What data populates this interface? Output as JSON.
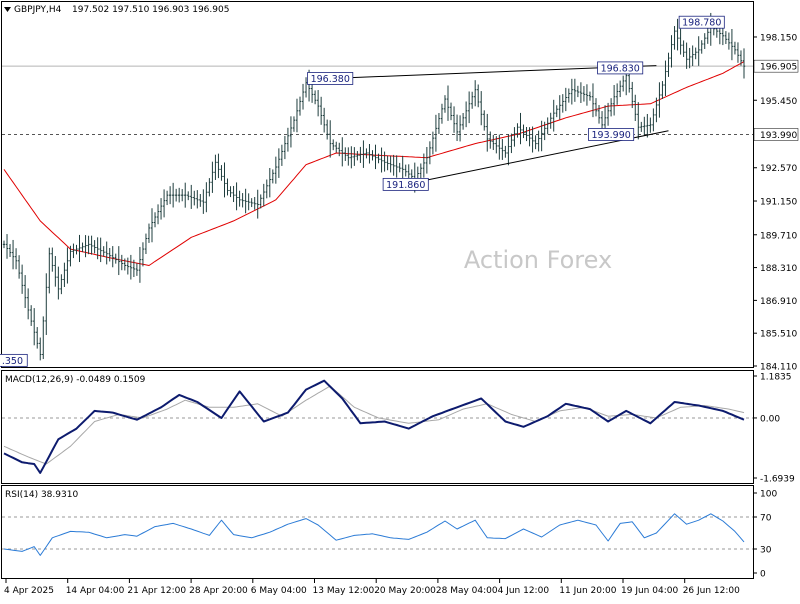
{
  "header": {
    "symbol": "GBPJPY,H4",
    "ohlc": "197.502 197.510 196.903 196.905"
  },
  "watermark": "Action Forex",
  "chart_data": [
    {
      "type": "candlestick",
      "title": "GBPJPY,H4",
      "ylim": [
        184.11,
        199.6
      ],
      "y_ticks": [
        "198.150",
        "196.905",
        "195.450",
        "193.990",
        "192.570",
        "191.150",
        "189.710",
        "188.310",
        "186.910",
        "185.510",
        "184.110"
      ],
      "price_anchors": [
        {
          "bar": 0,
          "v": 189.3
        },
        {
          "bar": 4,
          "v": 188.6
        },
        {
          "bar": 8,
          "v": 186.5
        },
        {
          "bar": 12,
          "v": 184.6
        },
        {
          "bar": 15,
          "v": 188.9
        },
        {
          "bar": 18,
          "v": 187.4
        },
        {
          "bar": 22,
          "v": 189.0
        },
        {
          "bar": 28,
          "v": 189.3
        },
        {
          "bar": 34,
          "v": 188.9
        },
        {
          "bar": 40,
          "v": 188.4
        },
        {
          "bar": 44,
          "v": 188.2
        },
        {
          "bar": 48,
          "v": 190.0
        },
        {
          "bar": 54,
          "v": 191.4
        },
        {
          "bar": 60,
          "v": 191.4
        },
        {
          "bar": 66,
          "v": 191.1
        },
        {
          "bar": 70,
          "v": 192.8
        },
        {
          "bar": 74,
          "v": 191.6
        },
        {
          "bar": 78,
          "v": 191.2
        },
        {
          "bar": 84,
          "v": 191.0
        },
        {
          "bar": 90,
          "v": 192.6
        },
        {
          "bar": 96,
          "v": 194.6
        },
        {
          "bar": 100,
          "v": 196.2
        },
        {
          "bar": 104,
          "v": 195.2
        },
        {
          "bar": 108,
          "v": 193.6
        },
        {
          "bar": 114,
          "v": 193.0
        },
        {
          "bar": 120,
          "v": 193.2
        },
        {
          "bar": 126,
          "v": 192.8
        },
        {
          "bar": 132,
          "v": 192.5
        },
        {
          "bar": 136,
          "v": 192.1
        },
        {
          "bar": 140,
          "v": 193.0
        },
        {
          "bar": 146,
          "v": 195.5
        },
        {
          "bar": 150,
          "v": 194.1
        },
        {
          "bar": 156,
          "v": 195.9
        },
        {
          "bar": 160,
          "v": 193.8
        },
        {
          "bar": 166,
          "v": 193.2
        },
        {
          "bar": 170,
          "v": 194.3
        },
        {
          "bar": 176,
          "v": 193.6
        },
        {
          "bar": 182,
          "v": 194.9
        },
        {
          "bar": 188,
          "v": 195.9
        },
        {
          "bar": 194,
          "v": 195.6
        },
        {
          "bar": 198,
          "v": 194.4
        },
        {
          "bar": 202,
          "v": 195.6
        },
        {
          "bar": 206,
          "v": 196.5
        },
        {
          "bar": 210,
          "v": 194.3
        },
        {
          "bar": 214,
          "v": 194.4
        },
        {
          "bar": 218,
          "v": 196.1
        },
        {
          "bar": 222,
          "v": 198.4
        },
        {
          "bar": 226,
          "v": 197.2
        },
        {
          "bar": 230,
          "v": 197.6
        },
        {
          "bar": 234,
          "v": 198.6
        },
        {
          "bar": 238,
          "v": 198.2
        },
        {
          "bar": 242,
          "v": 197.6
        },
        {
          "bar": 245,
          "v": 196.905
        }
      ],
      "moving_average": [
        {
          "bar": 0,
          "v": 192.5
        },
        {
          "bar": 12,
          "v": 190.3
        },
        {
          "bar": 22,
          "v": 189.1
        },
        {
          "bar": 36,
          "v": 188.7
        },
        {
          "bar": 48,
          "v": 188.4
        },
        {
          "bar": 62,
          "v": 189.6
        },
        {
          "bar": 76,
          "v": 190.3
        },
        {
          "bar": 90,
          "v": 191.2
        },
        {
          "bar": 100,
          "v": 192.7
        },
        {
          "bar": 110,
          "v": 193.2
        },
        {
          "bar": 124,
          "v": 193.1
        },
        {
          "bar": 140,
          "v": 193.0
        },
        {
          "bar": 156,
          "v": 193.6
        },
        {
          "bar": 170,
          "v": 194.0
        },
        {
          "bar": 186,
          "v": 194.7
        },
        {
          "bar": 200,
          "v": 195.2
        },
        {
          "bar": 214,
          "v": 195.3
        },
        {
          "bar": 226,
          "v": 196.0
        },
        {
          "bar": 238,
          "v": 196.6
        },
        {
          "bar": 245,
          "v": 197.1
        }
      ],
      "current_price": "196.905",
      "support_line": "193.990",
      "annotations": [
        {
          "label": "196.380",
          "bar": 108,
          "v": 196.38
        },
        {
          "label": "196.830",
          "bar": 204,
          "v": 196.83
        },
        {
          "label": "191.860",
          "bar": 133,
          "v": 191.86
        },
        {
          "label": "193.990",
          "bar": 201,
          "v": 193.99
        },
        {
          "label": "198.780",
          "bar": 231,
          "v": 198.78
        },
        {
          "label": ".350",
          "bar": 3,
          "v": 184.35
        }
      ],
      "trendlines": [
        {
          "from": {
            "bar": 108,
            "v": 196.38
          },
          "to": {
            "bar": 216,
            "v": 196.93
          }
        },
        {
          "from": {
            "bar": 133,
            "v": 191.86
          },
          "to": {
            "bar": 220,
            "v": 194.15
          }
        }
      ],
      "x_labels": [
        "4 Apr 2025",
        "14 Apr 04:00",
        "21 Apr 12:00",
        "28 Apr 20:00",
        "6 May 04:00",
        "13 May 12:00",
        "20 May 20:00",
        "28 May 04:00",
        "4 Jun 12:00",
        "11 Jun 20:00",
        "19 Jun 04:00",
        "26 Jun 12:00"
      ]
    },
    {
      "type": "line",
      "title": "MACD(12,26,9) -0.0489 0.1509",
      "ylim": [
        -1.6939,
        1.1835
      ],
      "y_ticks": [
        "1.1835",
        "0.00",
        "-1.6939"
      ],
      "macd": [
        {
          "bar": 0,
          "v": -1.0
        },
        {
          "bar": 6,
          "v": -1.25
        },
        {
          "bar": 10,
          "v": -1.3
        },
        {
          "bar": 12,
          "v": -1.55
        },
        {
          "bar": 18,
          "v": -0.6
        },
        {
          "bar": 24,
          "v": -0.3
        },
        {
          "bar": 30,
          "v": 0.2
        },
        {
          "bar": 36,
          "v": 0.15
        },
        {
          "bar": 44,
          "v": -0.05
        },
        {
          "bar": 52,
          "v": 0.3
        },
        {
          "bar": 58,
          "v": 0.65
        },
        {
          "bar": 64,
          "v": 0.45
        },
        {
          "bar": 72,
          "v": 0.0
        },
        {
          "bar": 78,
          "v": 0.75
        },
        {
          "bar": 86,
          "v": -0.1
        },
        {
          "bar": 94,
          "v": 0.15
        },
        {
          "bar": 100,
          "v": 0.8
        },
        {
          "bar": 106,
          "v": 1.05
        },
        {
          "bar": 112,
          "v": 0.55
        },
        {
          "bar": 118,
          "v": -0.15
        },
        {
          "bar": 126,
          "v": -0.1
        },
        {
          "bar": 134,
          "v": -0.3
        },
        {
          "bar": 142,
          "v": 0.05
        },
        {
          "bar": 150,
          "v": 0.3
        },
        {
          "bar": 158,
          "v": 0.55
        },
        {
          "bar": 166,
          "v": -0.1
        },
        {
          "bar": 172,
          "v": -0.25
        },
        {
          "bar": 180,
          "v": 0.05
        },
        {
          "bar": 186,
          "v": 0.4
        },
        {
          "bar": 194,
          "v": 0.25
        },
        {
          "bar": 200,
          "v": -0.1
        },
        {
          "bar": 206,
          "v": 0.2
        },
        {
          "bar": 214,
          "v": -0.15
        },
        {
          "bar": 222,
          "v": 0.45
        },
        {
          "bar": 230,
          "v": 0.35
        },
        {
          "bar": 238,
          "v": 0.2
        },
        {
          "bar": 245,
          "v": -0.0489
        }
      ],
      "signal": [
        {
          "bar": 0,
          "v": -0.8
        },
        {
          "bar": 8,
          "v": -1.1
        },
        {
          "bar": 14,
          "v": -1.3
        },
        {
          "bar": 22,
          "v": -0.8
        },
        {
          "bar": 30,
          "v": -0.1
        },
        {
          "bar": 38,
          "v": 0.1
        },
        {
          "bar": 46,
          "v": 0.0
        },
        {
          "bar": 54,
          "v": 0.25
        },
        {
          "bar": 60,
          "v": 0.5
        },
        {
          "bar": 68,
          "v": 0.3
        },
        {
          "bar": 76,
          "v": 0.3
        },
        {
          "bar": 84,
          "v": 0.4
        },
        {
          "bar": 92,
          "v": 0.05
        },
        {
          "bar": 100,
          "v": 0.5
        },
        {
          "bar": 108,
          "v": 0.9
        },
        {
          "bar": 116,
          "v": 0.3
        },
        {
          "bar": 124,
          "v": 0.0
        },
        {
          "bar": 134,
          "v": -0.15
        },
        {
          "bar": 144,
          "v": -0.05
        },
        {
          "bar": 152,
          "v": 0.25
        },
        {
          "bar": 160,
          "v": 0.4
        },
        {
          "bar": 168,
          "v": 0.1
        },
        {
          "bar": 176,
          "v": -0.1
        },
        {
          "bar": 184,
          "v": 0.2
        },
        {
          "bar": 192,
          "v": 0.3
        },
        {
          "bar": 200,
          "v": 0.05
        },
        {
          "bar": 208,
          "v": 0.1
        },
        {
          "bar": 216,
          "v": 0.0
        },
        {
          "bar": 224,
          "v": 0.3
        },
        {
          "bar": 232,
          "v": 0.35
        },
        {
          "bar": 240,
          "v": 0.25
        },
        {
          "bar": 245,
          "v": 0.1509
        }
      ]
    },
    {
      "type": "line",
      "title": "RSI(14) 38.9310",
      "ylim": [
        0,
        100
      ],
      "y_ticks": [
        "100",
        "70",
        "30",
        "0"
      ],
      "levels": [
        70,
        30
      ],
      "rsi": [
        {
          "bar": 0,
          "v": 30
        },
        {
          "bar": 6,
          "v": 27
        },
        {
          "bar": 10,
          "v": 33
        },
        {
          "bar": 12,
          "v": 22
        },
        {
          "bar": 16,
          "v": 44
        },
        {
          "bar": 22,
          "v": 52
        },
        {
          "bar": 28,
          "v": 51
        },
        {
          "bar": 34,
          "v": 44
        },
        {
          "bar": 40,
          "v": 48
        },
        {
          "bar": 44,
          "v": 46
        },
        {
          "bar": 50,
          "v": 58
        },
        {
          "bar": 56,
          "v": 62
        },
        {
          "bar": 62,
          "v": 55
        },
        {
          "bar": 68,
          "v": 47
        },
        {
          "bar": 72,
          "v": 66
        },
        {
          "bar": 76,
          "v": 48
        },
        {
          "bar": 82,
          "v": 44
        },
        {
          "bar": 88,
          "v": 51
        },
        {
          "bar": 94,
          "v": 61
        },
        {
          "bar": 100,
          "v": 68
        },
        {
          "bar": 104,
          "v": 60
        },
        {
          "bar": 110,
          "v": 41
        },
        {
          "bar": 116,
          "v": 47
        },
        {
          "bar": 122,
          "v": 49
        },
        {
          "bar": 128,
          "v": 44
        },
        {
          "bar": 134,
          "v": 42
        },
        {
          "bar": 140,
          "v": 51
        },
        {
          "bar": 146,
          "v": 65
        },
        {
          "bar": 150,
          "v": 55
        },
        {
          "bar": 156,
          "v": 66
        },
        {
          "bar": 160,
          "v": 44
        },
        {
          "bar": 166,
          "v": 43
        },
        {
          "bar": 172,
          "v": 55
        },
        {
          "bar": 178,
          "v": 45
        },
        {
          "bar": 184,
          "v": 60
        },
        {
          "bar": 190,
          "v": 66
        },
        {
          "bar": 196,
          "v": 60
        },
        {
          "bar": 200,
          "v": 40
        },
        {
          "bar": 204,
          "v": 62
        },
        {
          "bar": 208,
          "v": 64
        },
        {
          "bar": 212,
          "v": 44
        },
        {
          "bar": 216,
          "v": 50
        },
        {
          "bar": 222,
          "v": 74
        },
        {
          "bar": 226,
          "v": 61
        },
        {
          "bar": 230,
          "v": 66
        },
        {
          "bar": 234,
          "v": 74
        },
        {
          "bar": 238,
          "v": 65
        },
        {
          "bar": 242,
          "v": 52
        },
        {
          "bar": 245,
          "v": 38.931
        }
      ]
    }
  ]
}
